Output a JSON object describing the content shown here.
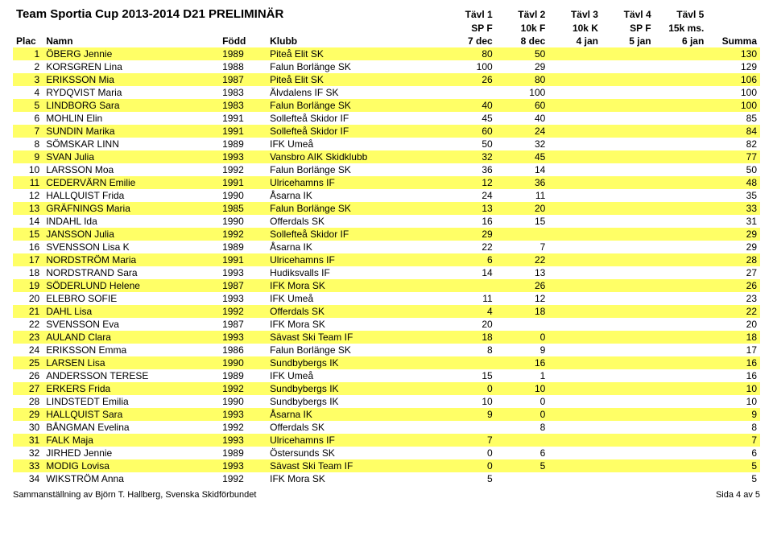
{
  "title": "Team Sportia Cup 2013-2014 D21 PRELIMINÄR",
  "header": {
    "plac": "Plac",
    "namn": "Namn",
    "fodd": "Född",
    "klubb": "Klubb",
    "tavl_row1": [
      "Tävl 1",
      "Tävl 2",
      "Tävl 3",
      "Tävl 4",
      "Tävl 5"
    ],
    "tavl_row2": [
      "SP F",
      "10k F",
      "10k K",
      "SP F",
      "15k ms."
    ],
    "tavl_row3": [
      "7 dec",
      "8 dec",
      "4 jan",
      "5 jan",
      "6 jan"
    ],
    "summa": "Summa"
  },
  "highlight_color": "#ffff66",
  "rows": [
    {
      "plac": 1,
      "namn": "ÖBERG Jennie",
      "fodd": 1989,
      "klubb": "Piteå Elit SK",
      "t1": "80",
      "t2": "50",
      "t3": "",
      "t4": "",
      "t5": "",
      "summa": 130,
      "hl": true
    },
    {
      "plac": 2,
      "namn": "KORSGREN Lina",
      "fodd": 1988,
      "klubb": "Falun Borlänge SK",
      "t1": "100",
      "t2": "29",
      "t3": "",
      "t4": "",
      "t5": "",
      "summa": 129,
      "hl": false
    },
    {
      "plac": 3,
      "namn": "ERIKSSON Mia",
      "fodd": 1987,
      "klubb": "Piteå Elit SK",
      "t1": "26",
      "t2": "80",
      "t3": "",
      "t4": "",
      "t5": "",
      "summa": 106,
      "hl": true
    },
    {
      "plac": 4,
      "namn": "RYDQVIST Maria",
      "fodd": 1983,
      "klubb": "Älvdalens IF SK",
      "t1": "",
      "t2": "100",
      "t3": "",
      "t4": "",
      "t5": "",
      "summa": 100,
      "hl": false
    },
    {
      "plac": 5,
      "namn": "LINDBORG Sara",
      "fodd": 1983,
      "klubb": "Falun Borlänge SK",
      "t1": "40",
      "t2": "60",
      "t3": "",
      "t4": "",
      "t5": "",
      "summa": 100,
      "hl": true
    },
    {
      "plac": 6,
      "namn": "MOHLIN Elin",
      "fodd": 1991,
      "klubb": "Sollefteå Skidor IF",
      "t1": "45",
      "t2": "40",
      "t3": "",
      "t4": "",
      "t5": "",
      "summa": 85,
      "hl": false
    },
    {
      "plac": 7,
      "namn": "SUNDIN Marika",
      "fodd": 1991,
      "klubb": "Sollefteå Skidor IF",
      "t1": "60",
      "t2": "24",
      "t3": "",
      "t4": "",
      "t5": "",
      "summa": 84,
      "hl": true
    },
    {
      "plac": 8,
      "namn": "SÖMSKAR LINN",
      "fodd": 1989,
      "klubb": "IFK Umeå",
      "t1": "50",
      "t2": "32",
      "t3": "",
      "t4": "",
      "t5": "",
      "summa": 82,
      "hl": false
    },
    {
      "plac": 9,
      "namn": "SVAN Julia",
      "fodd": 1993,
      "klubb": "Vansbro AIK Skidklubb",
      "t1": "32",
      "t2": "45",
      "t3": "",
      "t4": "",
      "t5": "",
      "summa": 77,
      "hl": true
    },
    {
      "plac": 10,
      "namn": "LARSSON Moa",
      "fodd": 1992,
      "klubb": "Falun Borlänge SK",
      "t1": "36",
      "t2": "14",
      "t3": "",
      "t4": "",
      "t5": "",
      "summa": 50,
      "hl": false
    },
    {
      "plac": 11,
      "namn": "CEDERVÄRN Emilie",
      "fodd": 1991,
      "klubb": "Ulricehamns IF",
      "t1": "12",
      "t2": "36",
      "t3": "",
      "t4": "",
      "t5": "",
      "summa": 48,
      "hl": true
    },
    {
      "plac": 12,
      "namn": "HALLQUIST Frida",
      "fodd": 1990,
      "klubb": "Åsarna IK",
      "t1": "24",
      "t2": "11",
      "t3": "",
      "t4": "",
      "t5": "",
      "summa": 35,
      "hl": false
    },
    {
      "plac": 13,
      "namn": "GRÄFNINGS Maria",
      "fodd": 1985,
      "klubb": "Falun Borlänge SK",
      "t1": "13",
      "t2": "20",
      "t3": "",
      "t4": "",
      "t5": "",
      "summa": 33,
      "hl": true
    },
    {
      "plac": 14,
      "namn": "INDAHL Ida",
      "fodd": 1990,
      "klubb": "Offerdals SK",
      "t1": "16",
      "t2": "15",
      "t3": "",
      "t4": "",
      "t5": "",
      "summa": 31,
      "hl": false
    },
    {
      "plac": 15,
      "namn": "JANSSON Julia",
      "fodd": 1992,
      "klubb": "Sollefteå Skidor IF",
      "t1": "29",
      "t2": "",
      "t3": "",
      "t4": "",
      "t5": "",
      "summa": 29,
      "hl": true
    },
    {
      "plac": 16,
      "namn": "SVENSSON Lisa K",
      "fodd": 1989,
      "klubb": "Åsarna IK",
      "t1": "22",
      "t2": "7",
      "t3": "",
      "t4": "",
      "t5": "",
      "summa": 29,
      "hl": false
    },
    {
      "plac": 17,
      "namn": "NORDSTRÖM Maria",
      "fodd": 1991,
      "klubb": "Ulricehamns IF",
      "t1": "6",
      "t2": "22",
      "t3": "",
      "t4": "",
      "t5": "",
      "summa": 28,
      "hl": true
    },
    {
      "plac": 18,
      "namn": "NORDSTRAND Sara",
      "fodd": 1993,
      "klubb": "Hudiksvalls IF",
      "t1": "14",
      "t2": "13",
      "t3": "",
      "t4": "",
      "t5": "",
      "summa": 27,
      "hl": false
    },
    {
      "plac": 19,
      "namn": "SÖDERLUND Helene",
      "fodd": 1987,
      "klubb": "IFK Mora SK",
      "t1": "",
      "t2": "26",
      "t3": "",
      "t4": "",
      "t5": "",
      "summa": 26,
      "hl": true
    },
    {
      "plac": 20,
      "namn": "ELEBRO SOFIE",
      "fodd": 1993,
      "klubb": "IFK Umeå",
      "t1": "11",
      "t2": "12",
      "t3": "",
      "t4": "",
      "t5": "",
      "summa": 23,
      "hl": false
    },
    {
      "plac": 21,
      "namn": "DAHL Lisa",
      "fodd": 1992,
      "klubb": "Offerdals SK",
      "t1": "4",
      "t2": "18",
      "t3": "",
      "t4": "",
      "t5": "",
      "summa": 22,
      "hl": true
    },
    {
      "plac": 22,
      "namn": "SVENSSON Eva",
      "fodd": 1987,
      "klubb": "IFK Mora SK",
      "t1": "20",
      "t2": "",
      "t3": "",
      "t4": "",
      "t5": "",
      "summa": 20,
      "hl": false
    },
    {
      "plac": 23,
      "namn": "AULAND Clara",
      "fodd": 1993,
      "klubb": "Sävast Ski Team IF",
      "t1": "18",
      "t2": "0",
      "t3": "",
      "t4": "",
      "t5": "",
      "summa": 18,
      "hl": true
    },
    {
      "plac": 24,
      "namn": "ERIKSSON Emma",
      "fodd": 1986,
      "klubb": "Falun Borlänge SK",
      "t1": "8",
      "t2": "9",
      "t3": "",
      "t4": "",
      "t5": "",
      "summa": 17,
      "hl": false
    },
    {
      "plac": 25,
      "namn": "LARSEN Lisa",
      "fodd": 1990,
      "klubb": "Sundbybergs IK",
      "t1": "",
      "t2": "16",
      "t3": "",
      "t4": "",
      "t5": "",
      "summa": 16,
      "hl": true
    },
    {
      "plac": 26,
      "namn": "ANDERSSON TERESE",
      "fodd": 1989,
      "klubb": "IFK Umeå",
      "t1": "15",
      "t2": "1",
      "t3": "",
      "t4": "",
      "t5": "",
      "summa": 16,
      "hl": false
    },
    {
      "plac": 27,
      "namn": "ERKERS Frida",
      "fodd": 1992,
      "klubb": "Sundbybergs IK",
      "t1": "0",
      "t2": "10",
      "t3": "",
      "t4": "",
      "t5": "",
      "summa": 10,
      "hl": true
    },
    {
      "plac": 28,
      "namn": "LINDSTEDT Emilia",
      "fodd": 1990,
      "klubb": "Sundbybergs IK",
      "t1": "10",
      "t2": "0",
      "t3": "",
      "t4": "",
      "t5": "",
      "summa": 10,
      "hl": false
    },
    {
      "plac": 29,
      "namn": "HALLQUIST Sara",
      "fodd": 1993,
      "klubb": "Åsarna IK",
      "t1": "9",
      "t2": "0",
      "t3": "",
      "t4": "",
      "t5": "",
      "summa": 9,
      "hl": true
    },
    {
      "plac": 30,
      "namn": "BÅNGMAN Evelina",
      "fodd": 1992,
      "klubb": "Offerdals SK",
      "t1": "",
      "t2": "8",
      "t3": "",
      "t4": "",
      "t5": "",
      "summa": 8,
      "hl": false
    },
    {
      "plac": 31,
      "namn": "FALK Maja",
      "fodd": 1993,
      "klubb": "Ulricehamns IF",
      "t1": "7",
      "t2": "",
      "t3": "",
      "t4": "",
      "t5": "",
      "summa": 7,
      "hl": true
    },
    {
      "plac": 32,
      "namn": "JIRHED Jennie",
      "fodd": 1989,
      "klubb": "Östersunds SK",
      "t1": "0",
      "t2": "6",
      "t3": "",
      "t4": "",
      "t5": "",
      "summa": 6,
      "hl": false
    },
    {
      "plac": 33,
      "namn": "MODIG Lovisa",
      "fodd": 1993,
      "klubb": "Sävast Ski Team IF",
      "t1": "0",
      "t2": "5",
      "t3": "",
      "t4": "",
      "t5": "",
      "summa": 5,
      "hl": true
    },
    {
      "plac": 34,
      "namn": "WIKSTRÖM Anna",
      "fodd": 1992,
      "klubb": "IFK Mora SK",
      "t1": "5",
      "t2": "",
      "t3": "",
      "t4": "",
      "t5": "",
      "summa": 5,
      "hl": false
    }
  ],
  "footer_left": "Sammanställning av Björn T. Hallberg, Svenska Skidförbundet",
  "footer_right": "Sida 4 av 5"
}
